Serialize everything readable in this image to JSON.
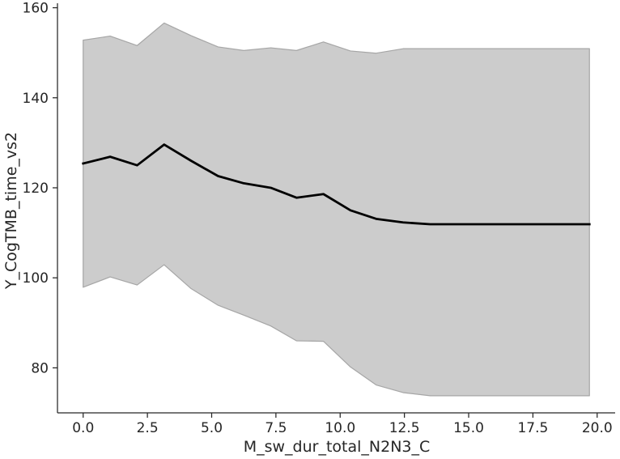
{
  "chart_data": {
    "type": "line",
    "title": "",
    "xlabel": "M_sw_dur_total_N2N3_C",
    "ylabel": "Y_CogTMB_time_vs2",
    "xlim": [
      -1.0,
      20.7
    ],
    "ylim": [
      70,
      161
    ],
    "xticks": [
      0.0,
      2.5,
      5.0,
      7.5,
      10.0,
      12.5,
      15.0,
      17.5,
      20.0
    ],
    "xtick_labels": [
      "0.0",
      "2.5",
      "5.0",
      "7.5",
      "10.0",
      "12.5",
      "15.0",
      "17.5",
      "20.0"
    ],
    "yticks": [
      80,
      100,
      120,
      140,
      160
    ],
    "ytick_labels": [
      "80",
      "100",
      "120",
      "140",
      "160"
    ],
    "grid": false,
    "legend": "none",
    "colors": {
      "line": "#000000",
      "band_fill": "#cccccc",
      "band_edge": "#a6a6a6",
      "axis": "#262626"
    },
    "series": [
      {
        "x": [
          0.0,
          1.05,
          2.1,
          3.15,
          4.2,
          5.25,
          6.25,
          7.3,
          8.3,
          9.35,
          10.4,
          11.4,
          12.45,
          13.5,
          14.5,
          15.55,
          16.6,
          17.6,
          18.65,
          19.7
        ],
        "y": [
          125.4,
          126.9,
          125.0,
          129.6,
          126.0,
          122.6,
          121.0,
          120.0,
          117.8,
          118.6,
          115.0,
          113.1,
          112.3,
          111.9,
          111.9,
          111.9,
          111.9,
          111.9,
          111.9,
          111.9
        ],
        "upper": [
          152.8,
          153.7,
          151.6,
          156.6,
          153.8,
          151.3,
          150.5,
          151.1,
          150.5,
          152.4,
          150.4,
          149.9,
          150.9,
          150.9,
          150.9,
          150.9,
          150.9,
          150.9,
          150.9,
          150.9
        ],
        "lower": [
          97.9,
          100.2,
          98.4,
          102.9,
          97.6,
          93.9,
          91.7,
          89.3,
          86.0,
          85.9,
          80.2,
          76.2,
          74.5,
          73.8,
          73.8,
          73.8,
          73.8,
          73.8,
          73.8,
          73.8
        ]
      }
    ]
  }
}
